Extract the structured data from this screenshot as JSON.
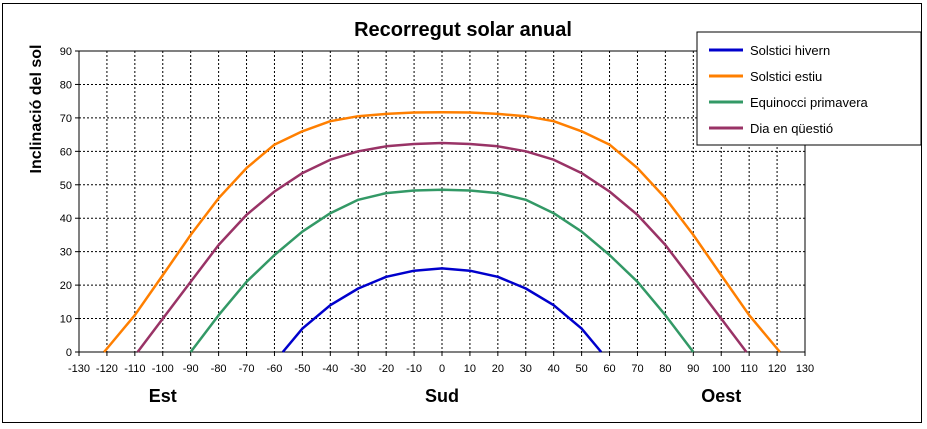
{
  "chart_data": {
    "type": "line",
    "title": "Recorregut solar anual",
    "ylabel": "Inclinació del sol",
    "xlabel": "",
    "xlim": [
      -130,
      130
    ],
    "ylim": [
      0,
      90
    ],
    "x_ticks": [
      -130,
      -120,
      -110,
      -100,
      -90,
      -80,
      -70,
      -60,
      -50,
      -40,
      -30,
      -20,
      -10,
      0,
      10,
      20,
      30,
      40,
      50,
      60,
      70,
      80,
      90,
      100,
      110,
      120,
      130
    ],
    "y_ticks": [
      0,
      10,
      20,
      30,
      40,
      50,
      60,
      70,
      80,
      90
    ],
    "grid": true,
    "legend_position": "top-right",
    "direction_labels": [
      {
        "text": "Est",
        "x": -100
      },
      {
        "text": "Sud",
        "x": 0
      },
      {
        "text": "Oest",
        "x": 100
      }
    ],
    "series": [
      {
        "name": "Solstici hivern",
        "color": "#0000cc",
        "x": [
          -57,
          -50,
          -40,
          -30,
          -20,
          -10,
          0,
          10,
          20,
          30,
          40,
          50,
          57
        ],
        "y": [
          0,
          7,
          14,
          19,
          22.5,
          24.3,
          25,
          24.3,
          22.5,
          19,
          14,
          7,
          0
        ]
      },
      {
        "name": "Solstici estiu",
        "color": "#ff7f00",
        "x": [
          -121,
          -110,
          -100,
          -90,
          -80,
          -70,
          -60,
          -50,
          -40,
          -30,
          -20,
          -10,
          0,
          10,
          20,
          30,
          40,
          50,
          60,
          70,
          80,
          90,
          100,
          110,
          121
        ],
        "y": [
          0,
          11,
          23,
          35,
          46,
          55,
          62,
          66,
          69,
          70.5,
          71.2,
          71.6,
          71.7,
          71.6,
          71.2,
          70.5,
          69,
          66,
          62,
          55,
          46,
          35,
          23,
          11,
          0
        ]
      },
      {
        "name": "Equinocci primavera",
        "color": "#339966",
        "x": [
          -90,
          -80,
          -70,
          -60,
          -50,
          -40,
          -30,
          -20,
          -10,
          0,
          10,
          20,
          30,
          40,
          50,
          60,
          70,
          80,
          90
        ],
        "y": [
          0,
          11,
          21,
          29,
          36,
          41.5,
          45.5,
          47.5,
          48.3,
          48.5,
          48.3,
          47.5,
          45.5,
          41.5,
          36,
          29,
          21,
          11,
          0
        ]
      },
      {
        "name": "Dia en qüestió",
        "color": "#993366",
        "x": [
          -109,
          -100,
          -90,
          -80,
          -70,
          -60,
          -50,
          -40,
          -30,
          -20,
          -10,
          0,
          10,
          20,
          30,
          40,
          50,
          60,
          70,
          80,
          90,
          100,
          109
        ],
        "y": [
          0,
          10,
          21,
          32,
          41,
          48,
          53.5,
          57.5,
          60,
          61.5,
          62.2,
          62.5,
          62.2,
          61.5,
          60,
          57.5,
          53.5,
          48,
          41,
          32,
          21,
          10,
          0
        ]
      }
    ]
  }
}
